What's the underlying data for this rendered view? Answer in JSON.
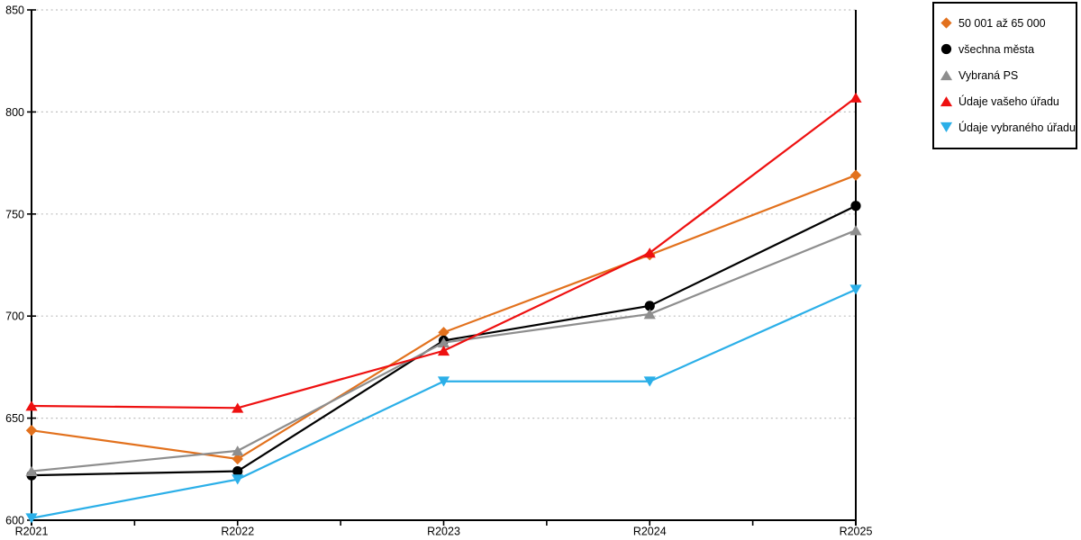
{
  "chart_data": {
    "type": "line",
    "title": "",
    "xlabel": "",
    "ylabel": "",
    "categories": [
      "R2021",
      "R2022",
      "R2023",
      "R2024",
      "R2025"
    ],
    "y_ticks": [
      600,
      650,
      700,
      750,
      800,
      850
    ],
    "ylim": [
      600,
      850
    ],
    "grid": "horizontal-dotted",
    "legend_position": "top-right-outside",
    "series": [
      {
        "name": "50 001 až 65 000",
        "marker": "diamond",
        "color": "#E2711D",
        "values": [
          644,
          630,
          692,
          730,
          769
        ]
      },
      {
        "name": "všechna města",
        "marker": "circle",
        "color": "#000000",
        "values": [
          622,
          624,
          688,
          705,
          754
        ]
      },
      {
        "name": "Vybraná PS",
        "marker": "triangle-up",
        "color": "#8E8E8E",
        "values": [
          624,
          634,
          687,
          701,
          742
        ]
      },
      {
        "name": "Údaje vašeho úřadu",
        "marker": "triangle-up",
        "color": "#EE1010",
        "values": [
          656,
          655,
          683,
          731,
          807
        ]
      },
      {
        "name": "Údaje vybraného úřadu",
        "marker": "triangle-down",
        "color": "#2BAFE8",
        "values": [
          601,
          620,
          668,
          668,
          713
        ]
      }
    ]
  },
  "colors": {
    "background": "#FFFFFF",
    "axis": "#000000",
    "grid": "#BFBFBF",
    "tick_label": "#000000",
    "legend_border": "#000000"
  }
}
